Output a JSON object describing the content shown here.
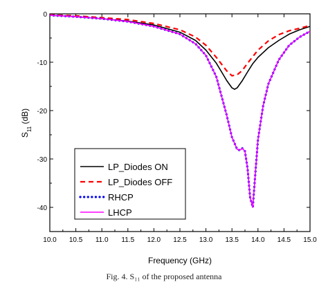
{
  "chart_data": {
    "type": "line",
    "xlabel": "Frequency (GHz)",
    "ylabel_main": "S",
    "ylabel_sub": "11",
    "ylabel_suffix": " (dB)",
    "xlim": [
      10.0,
      15.0
    ],
    "ylim": [
      -45,
      0
    ],
    "xticks": [
      "10.0",
      "10.5",
      "11.0",
      "11.5",
      "12.0",
      "12.5",
      "13.0",
      "13.5",
      "14.0",
      "14.5",
      "15.0"
    ],
    "yticks": [
      "0",
      "-10",
      "-20",
      "-30",
      "-40"
    ],
    "grid": false,
    "legend_position": "bottom-left",
    "series": [
      {
        "name": "LP_Diodes ON",
        "color": "#000000",
        "style": "solid",
        "x": [
          10.0,
          10.5,
          11.0,
          11.5,
          12.0,
          12.5,
          12.8,
          13.0,
          13.2,
          13.3,
          13.4,
          13.5,
          13.55,
          13.6,
          13.7,
          13.8,
          13.9,
          14.0,
          14.2,
          14.4,
          14.6,
          14.8,
          15.0
        ],
        "y": [
          -0.3,
          -0.6,
          -1.0,
          -1.5,
          -2.3,
          -3.8,
          -5.5,
          -7.5,
          -10.2,
          -12.0,
          -13.8,
          -15.3,
          -15.6,
          -15.3,
          -13.8,
          -12.0,
          -10.3,
          -9.0,
          -7.0,
          -5.5,
          -4.2,
          -3.3,
          -2.6
        ]
      },
      {
        "name": "LP_Diodes OFF",
        "color": "#ff0000",
        "style": "dashed",
        "x": [
          10.0,
          10.5,
          11.0,
          11.5,
          12.0,
          12.5,
          12.8,
          13.0,
          13.2,
          13.4,
          13.5,
          13.6,
          13.7,
          13.8,
          14.0,
          14.2,
          14.4,
          14.6,
          14.8,
          15.0
        ],
        "y": [
          -0.2,
          -0.4,
          -0.8,
          -1.2,
          -2.0,
          -3.3,
          -4.8,
          -6.5,
          -9.0,
          -11.8,
          -12.8,
          -12.6,
          -11.7,
          -10.2,
          -7.5,
          -5.6,
          -4.3,
          -3.5,
          -3.0,
          -2.4
        ]
      },
      {
        "name": "RHCP",
        "color": "#0000ff",
        "style": "dotted",
        "x": [
          10.0,
          10.5,
          11.0,
          11.5,
          12.0,
          12.5,
          12.8,
          13.0,
          13.2,
          13.4,
          13.5,
          13.6,
          13.65,
          13.7,
          13.75,
          13.8,
          13.85,
          13.9,
          13.95,
          14.0,
          14.1,
          14.2,
          14.4,
          14.6,
          14.8,
          15.0
        ],
        "y": [
          -0.3,
          -0.6,
          -1.0,
          -1.6,
          -2.6,
          -4.2,
          -6.2,
          -8.6,
          -13.0,
          -21.0,
          -25.5,
          -28.0,
          -28.2,
          -27.8,
          -28.4,
          -32.0,
          -38.0,
          -40.0,
          -33.0,
          -26.0,
          -19.0,
          -14.5,
          -9.5,
          -6.5,
          -4.8,
          -3.6
        ]
      },
      {
        "name": "LHCP",
        "color": "#ff00ff",
        "style": "solid",
        "x": [
          10.0,
          10.5,
          11.0,
          11.5,
          12.0,
          12.5,
          12.8,
          13.0,
          13.2,
          13.4,
          13.5,
          13.6,
          13.65,
          13.7,
          13.75,
          13.8,
          13.85,
          13.9,
          13.95,
          14.0,
          14.1,
          14.2,
          14.4,
          14.6,
          14.8,
          15.0
        ],
        "y": [
          -0.3,
          -0.6,
          -1.0,
          -1.6,
          -2.6,
          -4.2,
          -6.2,
          -8.6,
          -13.0,
          -21.0,
          -25.5,
          -28.0,
          -28.2,
          -27.8,
          -28.4,
          -32.0,
          -38.0,
          -40.0,
          -33.0,
          -26.0,
          -19.0,
          -14.5,
          -9.5,
          -6.5,
          -4.8,
          -3.6
        ]
      }
    ]
  },
  "caption": "Fig. 4. S₁₁ of the proposed antenna"
}
